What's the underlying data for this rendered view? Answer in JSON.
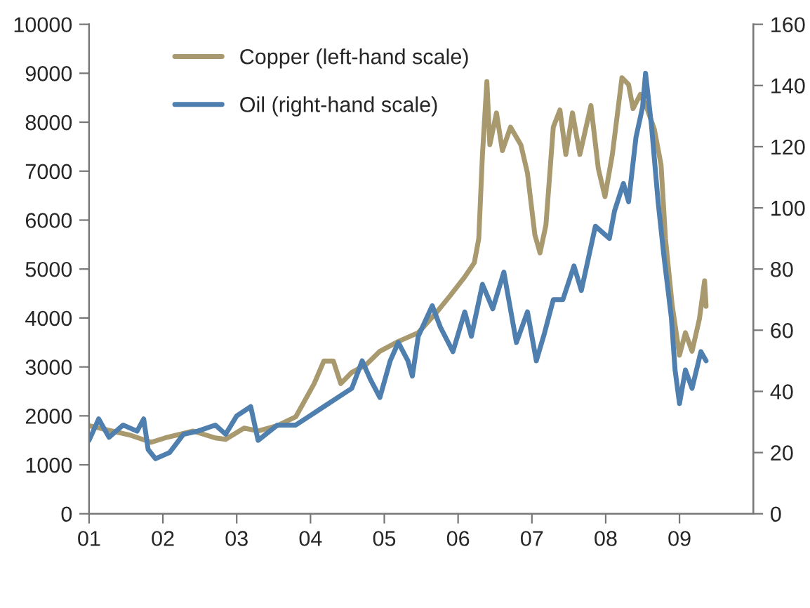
{
  "chart_data": {
    "type": "line",
    "xlim": [
      2001,
      2010
    ],
    "xticks": [
      {
        "value": 2001,
        "label": "01"
      },
      {
        "value": 2002,
        "label": "02"
      },
      {
        "value": 2003,
        "label": "03"
      },
      {
        "value": 2004,
        "label": "04"
      },
      {
        "value": 2005,
        "label": "05"
      },
      {
        "value": 2006,
        "label": "06"
      },
      {
        "value": 2007,
        "label": "07"
      },
      {
        "value": 2008,
        "label": "08"
      },
      {
        "value": 2009,
        "label": "09"
      }
    ],
    "ylim": [
      0,
      10000
    ],
    "yticks": [
      0,
      1000,
      2000,
      3000,
      4000,
      5000,
      6000,
      7000,
      8000,
      9000,
      10000
    ],
    "y2lim": [
      0,
      160
    ],
    "y2ticks": [
      0,
      20,
      40,
      60,
      80,
      100,
      120,
      140,
      160
    ],
    "legend": "top left",
    "grid": false,
    "series": [
      {
        "name": "Copper (left-hand scale)",
        "color": "#a89a6e",
        "axis": "y",
        "x": [
          2001.0,
          2001.57,
          2001.84,
          2002.03,
          2002.41,
          2002.71,
          2002.85,
          2003.1,
          2003.29,
          2003.55,
          2003.8,
          2004.05,
          2004.18,
          2004.31,
          2004.41,
          2004.56,
          2004.75,
          2004.94,
          2005.19,
          2005.46,
          2005.7,
          2005.9,
          2006.09,
          2006.22,
          2006.28,
          2006.33,
          2006.39,
          2006.43,
          2006.52,
          2006.6,
          2006.71,
          2006.85,
          2006.94,
          2007.04,
          2007.11,
          2007.19,
          2007.29,
          2007.38,
          2007.46,
          2007.55,
          2007.65,
          2007.8,
          2007.9,
          2007.99,
          2008.09,
          2008.22,
          2008.31,
          2008.37,
          2008.47,
          2008.56,
          2008.66,
          2008.75,
          2008.81,
          2008.9,
          2009.0,
          2009.08,
          2009.17,
          2009.27,
          2009.34,
          2009.36
        ],
        "values": [
          1800,
          1600,
          1460,
          1550,
          1690,
          1550,
          1520,
          1750,
          1690,
          1800,
          1980,
          2660,
          3120,
          3120,
          2660,
          2890,
          3040,
          3320,
          3520,
          3700,
          4100,
          4470,
          4840,
          5130,
          5620,
          7340,
          8830,
          7540,
          8190,
          7420,
          7900,
          7540,
          6960,
          5700,
          5330,
          5900,
          7900,
          8250,
          7340,
          8190,
          7340,
          8340,
          7050,
          6480,
          7340,
          8910,
          8770,
          8280,
          8570,
          8280,
          7850,
          7130,
          5620,
          4270,
          3240,
          3700,
          3320,
          3980,
          4760,
          4240
        ]
      },
      {
        "name": "Oil (right-hand scale)",
        "color": "#4f7fae",
        "axis": "y2",
        "x": [
          2001.0,
          2001.13,
          2001.27,
          2001.46,
          2001.65,
          2001.74,
          2001.8,
          2001.9,
          2002.09,
          2002.28,
          2002.47,
          2002.71,
          2002.85,
          2003.0,
          2003.19,
          2003.29,
          2003.55,
          2003.8,
          2003.99,
          2004.18,
          2004.37,
          2004.56,
          2004.7,
          2004.81,
          2004.94,
          2005.08,
          2005.19,
          2005.32,
          2005.38,
          2005.46,
          2005.65,
          2005.76,
          2005.93,
          2006.09,
          2006.18,
          2006.33,
          2006.47,
          2006.62,
          2006.79,
          2006.94,
          2007.06,
          2007.17,
          2007.29,
          2007.42,
          2007.57,
          2007.67,
          2007.86,
          2008.05,
          2008.12,
          2008.24,
          2008.31,
          2008.41,
          2008.5,
          2008.54,
          2008.62,
          2008.71,
          2008.79,
          2008.89,
          2008.94,
          2009.0,
          2009.08,
          2009.17,
          2009.29,
          2009.36
        ],
        "values": [
          24,
          31,
          25,
          29,
          27,
          31,
          21,
          18,
          20,
          26,
          27,
          29,
          26,
          32,
          35,
          24,
          29,
          29,
          32,
          35,
          38,
          41,
          50,
          44,
          38,
          50,
          56,
          50,
          45,
          58,
          68,
          61,
          53,
          66,
          58,
          75,
          67,
          79,
          56,
          66,
          50,
          59,
          70,
          70,
          81,
          73,
          94,
          90,
          99,
          108,
          102,
          123,
          133,
          144,
          127,
          102,
          84,
          64,
          47,
          36,
          47,
          41,
          53,
          50
        ]
      }
    ]
  }
}
